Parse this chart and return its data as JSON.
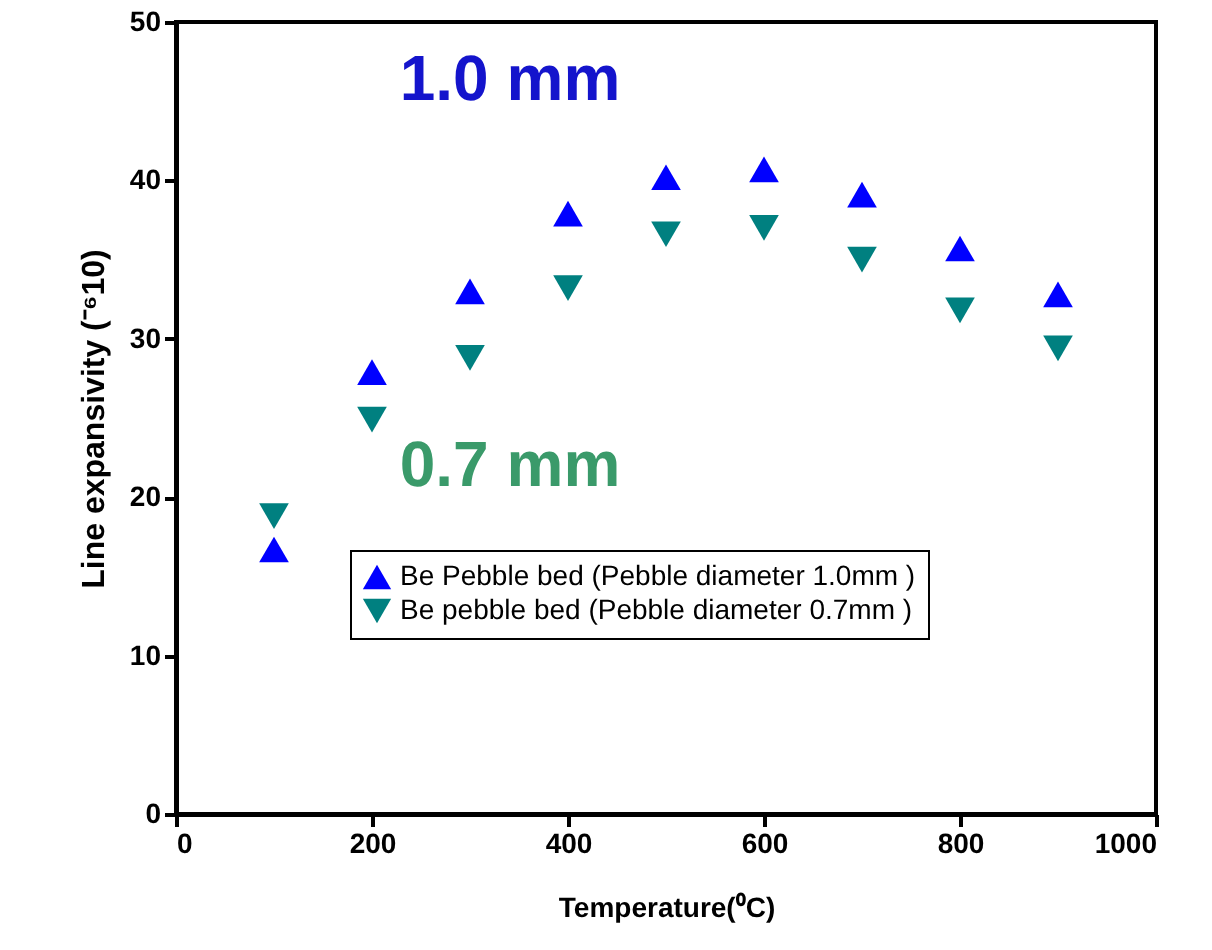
{
  "chart_data": {
    "type": "scatter",
    "xlabel": "Temperature(⁰C)",
    "ylabel": "Line expansivity (⁻⁶10)",
    "x": [
      100,
      200,
      300,
      400,
      500,
      600,
      700,
      800,
      900
    ],
    "series": [
      {
        "name": "Be Pebble bed (Pebble diameter 1.0mm )",
        "color": "#0000ff",
        "marker": "triangle",
        "values": [
          16.7,
          27.9,
          33.0,
          37.9,
          40.2,
          40.7,
          39.1,
          35.7,
          32.8
        ]
      },
      {
        "name": "Be pebble bed (Pebble diameter 0.7mm )",
        "color": "#008080",
        "marker": "triangle-down",
        "values": [
          18.8,
          24.9,
          28.8,
          33.2,
          36.6,
          37.0,
          35.0,
          31.8,
          29.4
        ]
      }
    ],
    "annotations": [
      "1.0 mm",
      "0.7 mm"
    ],
    "xlim": [
      0,
      1000
    ],
    "xticks": [
      0,
      200,
      400,
      600,
      800,
      1000
    ],
    "ylim": [
      0,
      50
    ],
    "yticks": [
      0,
      10,
      20,
      30,
      40,
      50
    ],
    "grid": false,
    "legend": "bottom right"
  }
}
